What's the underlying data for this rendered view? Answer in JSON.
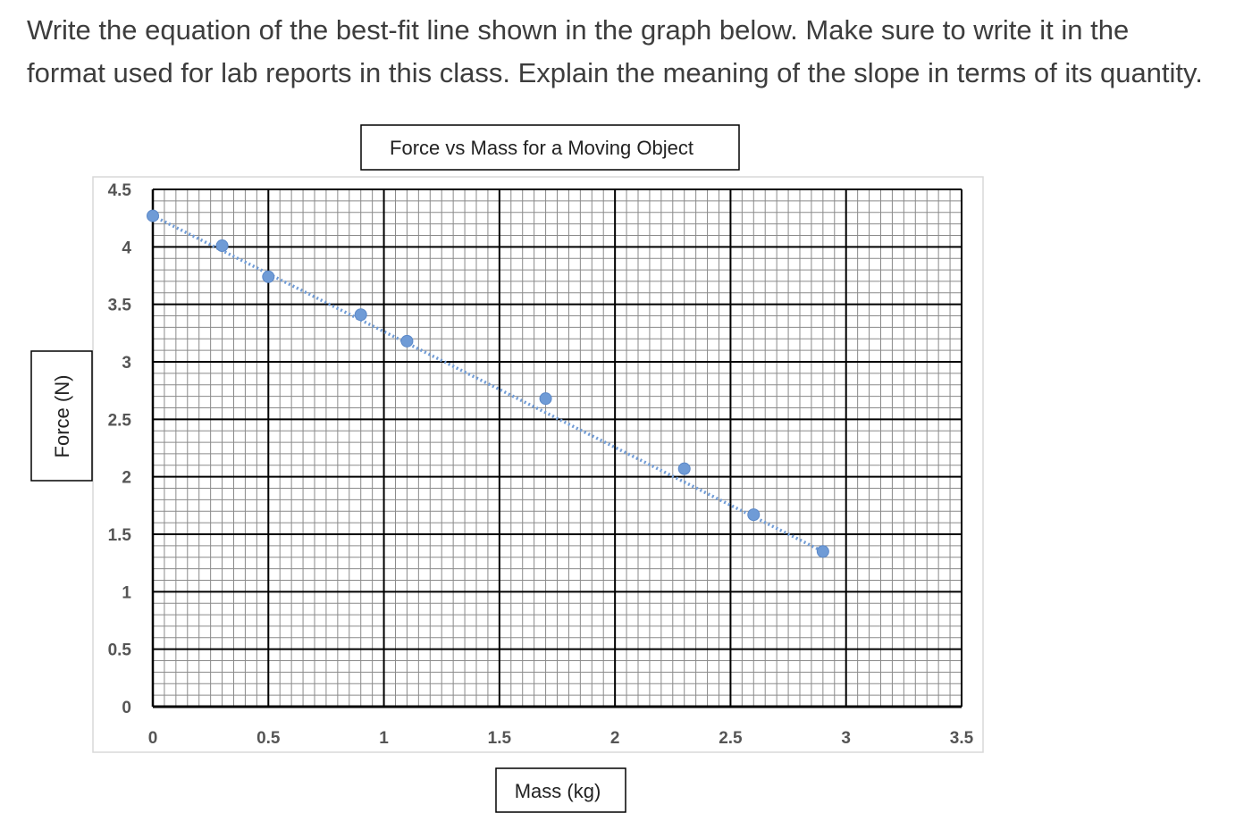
{
  "question": {
    "line1": "Write the equation of the best-fit line shown in the graph below.  Make sure to write it in the",
    "line2": "format used for lab reports in this class.   Explain the meaning of the slope in terms of its quantity."
  },
  "colors": {
    "marker": "#6f9bd6",
    "trendline": "#6f9bd6",
    "major_grid": "#000000",
    "minor_grid": "#8a8a8a",
    "text": "#333333"
  },
  "chart_data": {
    "type": "scatter",
    "title": "Force vs Mass for a Moving Object",
    "xlabel": "Mass (kg)",
    "ylabel": "Force (N)",
    "xlim": [
      0,
      3.5
    ],
    "ylim": [
      0,
      4.5
    ],
    "x_ticks": [
      "0",
      "0.5",
      "1",
      "1.5",
      "2",
      "2.5",
      "3",
      "3.5"
    ],
    "y_ticks": [
      "0",
      "0.5",
      "1",
      "1.5",
      "2",
      "2.5",
      "3",
      "3.5",
      "4",
      "4.5"
    ],
    "grid": true,
    "legend": "none",
    "series": [
      {
        "points": [
          {
            "x": 0.0,
            "y": 4.27
          },
          {
            "x": 0.3,
            "y": 4.01
          },
          {
            "x": 0.5,
            "y": 3.74
          },
          {
            "x": 0.9,
            "y": 3.41
          },
          {
            "x": 1.1,
            "y": 3.18
          },
          {
            "x": 1.7,
            "y": 2.68
          },
          {
            "x": 2.3,
            "y": 2.07
          },
          {
            "x": 2.6,
            "y": 1.67
          },
          {
            "x": 2.9,
            "y": 1.35
          }
        ],
        "trendline": {
          "style": "dotted",
          "from": {
            "x": 0.0,
            "y": 4.27
          },
          "to": {
            "x": 2.9,
            "y": 1.35
          }
        }
      }
    ]
  }
}
